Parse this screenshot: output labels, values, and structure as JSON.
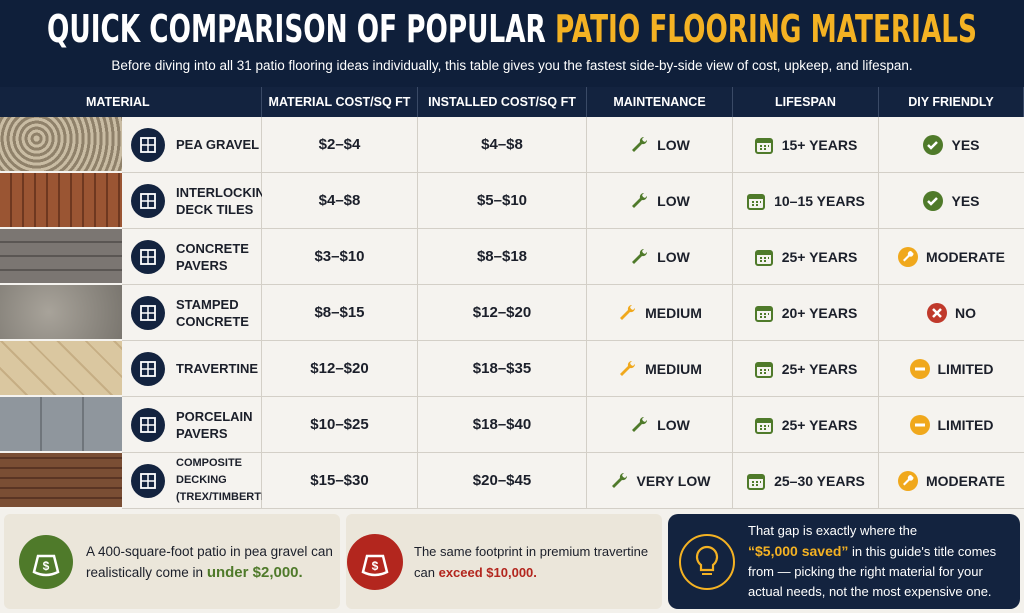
{
  "header": {
    "title_part1": "QUICK COMPARISON OF POPULAR",
    "title_part2": "PATIO FLOORING MATERIALS",
    "subtitle": "Before diving into all 31 patio flooring ideas individually, this table gives you the fastest side-by-side view of cost, upkeep, and lifespan."
  },
  "table": {
    "columns": [
      "MATERIAL",
      "MATERIAL COST/SQ FT",
      "INSTALLED COST/SQ FT",
      "MAINTENANCE",
      "LIFESPAN",
      "DIY FRIENDLY"
    ],
    "rows": [
      [
        "PEA GRAVEL",
        "$2–$4",
        "$4–$8",
        "LOW",
        "15+ YEARS",
        "YES"
      ],
      [
        "INTERLOCKING DECK TILES",
        "$4–$8",
        "$5–$10",
        "LOW",
        "10–15 YEARS",
        "YES"
      ],
      [
        "CONCRETE PAVERS",
        "$3–$10",
        "$8–$18",
        "LOW",
        "25+ YEARS",
        "MODERATE"
      ],
      [
        "STAMPED CONCRETE",
        "$8–$15",
        "$12–$20",
        "MEDIUM",
        "20+ YEARS",
        "NO"
      ],
      [
        "TRAVERTINE",
        "$12–$20",
        "$18–$35",
        "MEDIUM",
        "25+ YEARS",
        "LIMITED"
      ],
      [
        "PORCELAIN PAVERS",
        "$10–$25",
        "$18–$40",
        "LOW",
        "25+ YEARS",
        "LIMITED"
      ],
      [
        "COMPOSITE DECKING (TREX/TIMBERTECH)",
        "$15–$30",
        "$20–$45",
        "VERY LOW",
        "25–30 YEARS",
        "MODERATE"
      ]
    ]
  },
  "footer": [
    {
      "text": "A 400-square-foot patio in pea gravel can realistically come in",
      "highlight": "under $2,000."
    },
    {
      "text": "The same footprint in premium travertine can",
      "highlight": "exceed $10,000."
    },
    {
      "text": "That gap is exactly where the",
      "highlight": "“$5,000 saved”",
      "rest": "in this guide's title comes from — picking the right material for your actual needs, not the most expensive one."
    }
  ]
}
